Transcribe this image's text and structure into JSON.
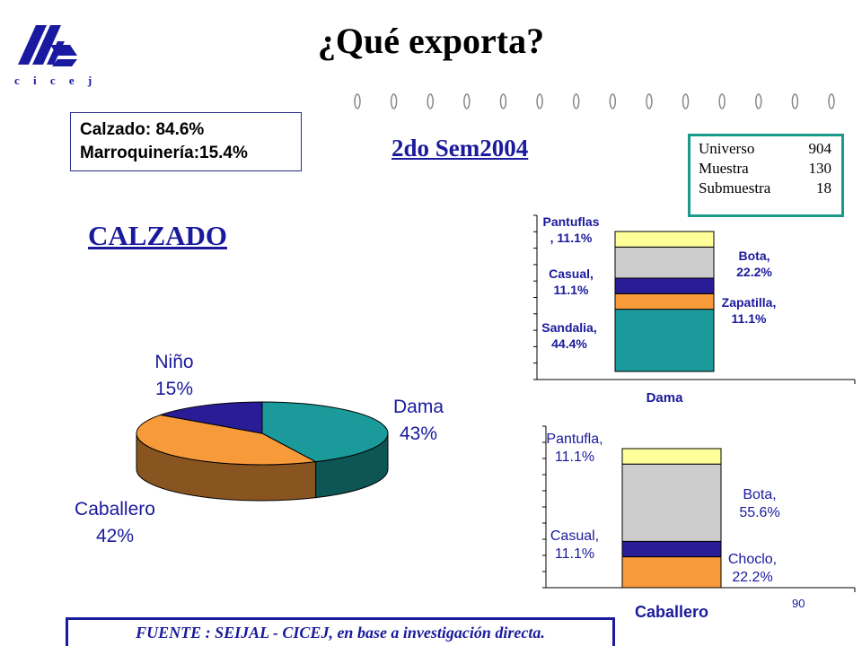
{
  "header": {
    "logo_text": "c i c e j",
    "title": "¿Qué exporta?"
  },
  "share_box": {
    "line1": "Calzado: 84.6%",
    "line2": "Marroquinería:15.4%"
  },
  "subtitle": "2do Sem2004",
  "sample": {
    "rows": [
      {
        "label": "Universo",
        "value": "904"
      },
      {
        "label": "Muestra",
        "value": "130"
      },
      {
        "label": "Submuestra",
        "value": "18"
      }
    ]
  },
  "section_title": "CALZADO",
  "page_number": "90",
  "footer": "FUENTE :  SEIJAL - CICEJ,  en base a investigación directa.",
  "colors": {
    "teal": "#1a9a9a",
    "orange": "#f79a3a",
    "navy": "#2a1c96",
    "gray": "#cccccc",
    "yellow": "#ffff99",
    "blue_text": "#1a1a9c"
  },
  "chart_data": [
    {
      "type": "pie",
      "slices": [
        {
          "label": "Dama",
          "pct_label": "43%",
          "value": 43,
          "color": "#1a9a9a"
        },
        {
          "label": "Caballero",
          "pct_label": "42%",
          "value": 42,
          "color": "#f79a3a"
        },
        {
          "label": "Niño",
          "pct_label": "15%",
          "value": 15,
          "color": "#2a1c96"
        }
      ]
    },
    {
      "type": "bar",
      "stacked": true,
      "categories": [
        "Dama"
      ],
      "series": [
        {
          "name": "Sandalia",
          "label": "Sandalia,\n44.4%",
          "value": 44.4,
          "color": "#1a9a9a"
        },
        {
          "name": "Zapatilla",
          "label": "Zapatilla,\n11.1%",
          "value": 11.1,
          "color": "#f79a3a"
        },
        {
          "name": "Casual",
          "label": "Casual,\n11.1%",
          "value": 11.1,
          "color": "#2a1c96"
        },
        {
          "name": "Bota",
          "label": "Bota,\n22.2%",
          "value": 22.2,
          "color": "#cccccc"
        },
        {
          "name": "Pantuflas",
          "label": "Pantuflas\n, 11.1%",
          "value": 11.1,
          "color": "#ffff99"
        }
      ]
    },
    {
      "type": "bar",
      "stacked": true,
      "categories": [
        "Caballero"
      ],
      "series": [
        {
          "name": "Choclo",
          "label": "Choclo,\n22.2%",
          "value": 22.2,
          "color": "#f79a3a"
        },
        {
          "name": "Casual",
          "label": "Casual,\n11.1%",
          "value": 11.1,
          "color": "#2a1c96"
        },
        {
          "name": "Bota",
          "label": "Bota,\n55.6%",
          "value": 55.6,
          "color": "#cccccc"
        },
        {
          "name": "Pantufla",
          "label": "Pantufla,\n11.1%",
          "value": 11.1,
          "color": "#ffff99"
        }
      ]
    }
  ]
}
